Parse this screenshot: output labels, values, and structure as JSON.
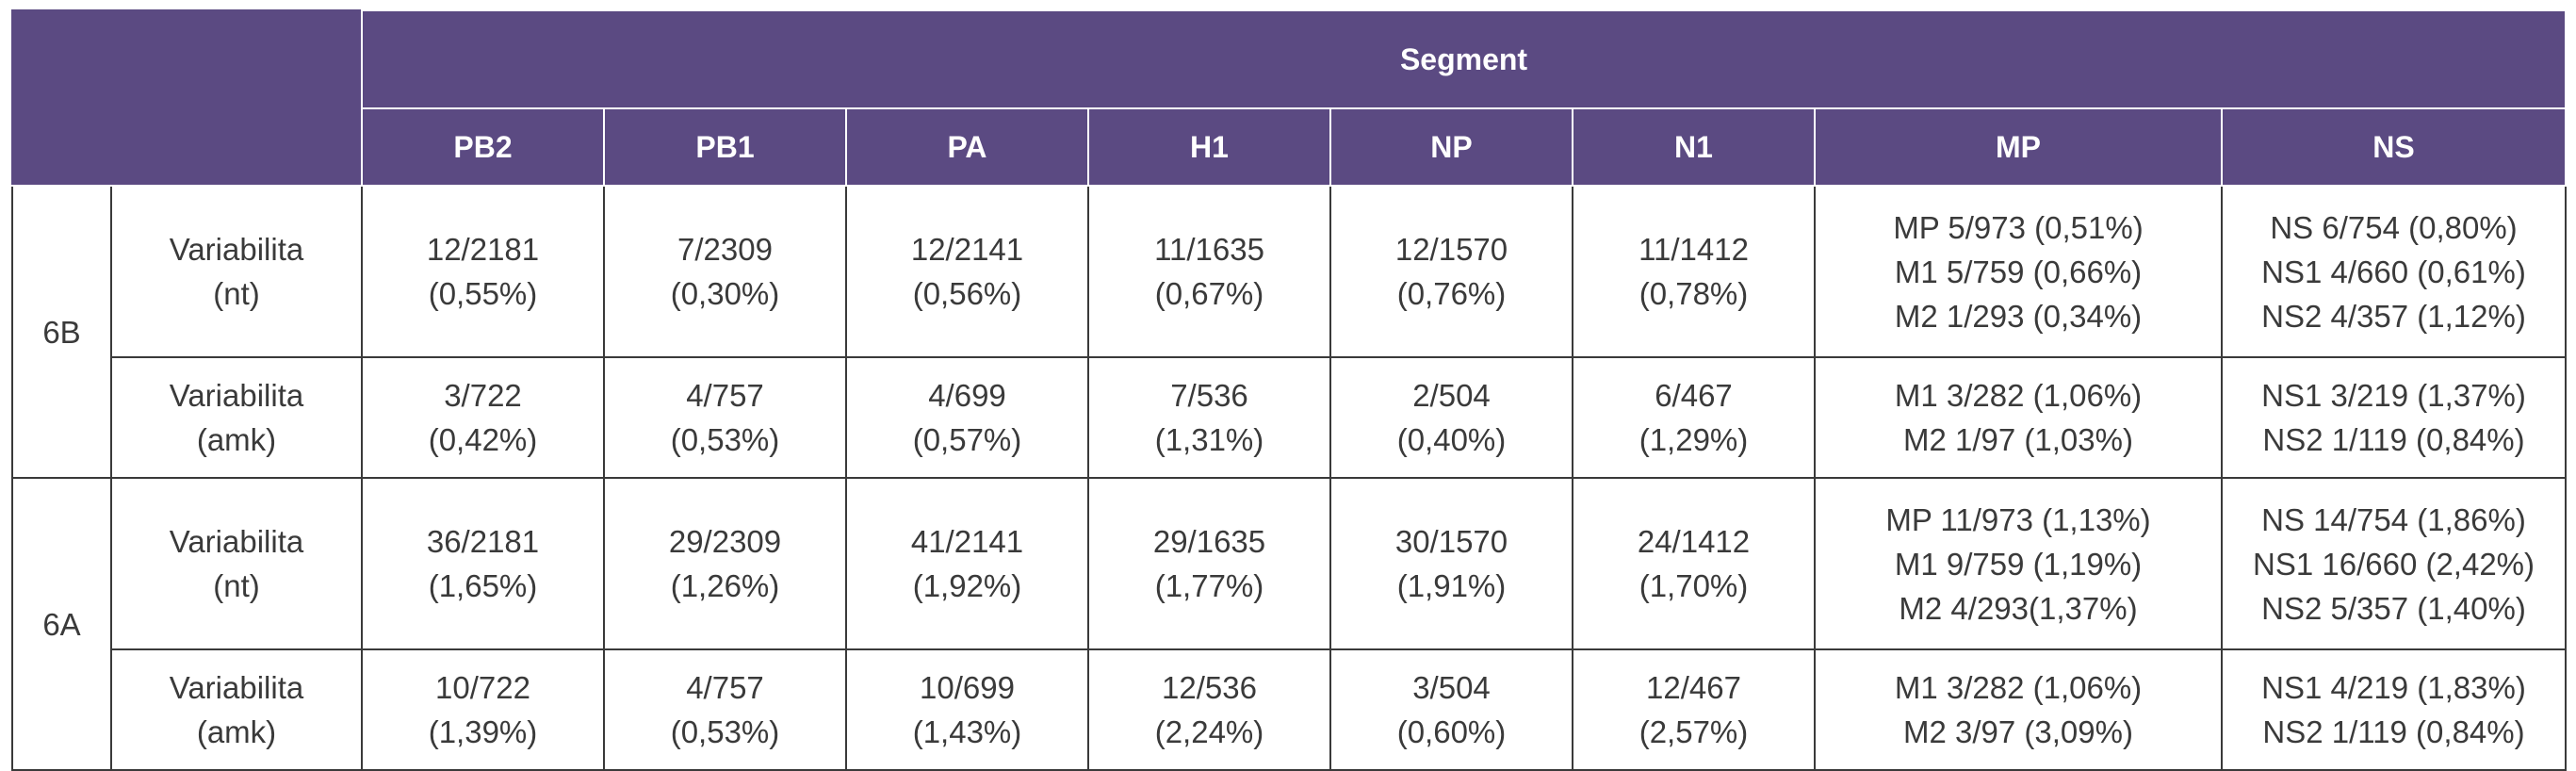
{
  "table": {
    "super_header": "Segment",
    "columns": [
      "PB2",
      "PB1",
      "PA",
      "H1",
      "NP",
      "N1",
      "MP",
      "NS"
    ],
    "groups": [
      {
        "label": "6B",
        "rows": [
          {
            "metric": [
              "Variabilita",
              "(nt)"
            ],
            "cells": [
              [
                "12/2181",
                "(0,55%)"
              ],
              [
                "7/2309",
                "(0,30%)"
              ],
              [
                "12/2141",
                "(0,56%)"
              ],
              [
                "11/1635",
                "(0,67%)"
              ],
              [
                "12/1570",
                "(0,76%)"
              ],
              [
                "11/1412",
                "(0,78%)"
              ],
              [
                "MP 5/973 (0,51%)",
                "M1 5/759 (0,66%)",
                "M2 1/293 (0,34%)"
              ],
              [
                "NS 6/754 (0,80%)",
                "NS1 4/660 (0,61%)",
                "NS2 4/357 (1,12%)"
              ]
            ]
          },
          {
            "metric": [
              "Variabilita",
              "(amk)"
            ],
            "cells": [
              [
                "3/722",
                "(0,42%)"
              ],
              [
                "4/757",
                "(0,53%)"
              ],
              [
                "4/699",
                "(0,57%)"
              ],
              [
                "7/536",
                "(1,31%)"
              ],
              [
                "2/504",
                "(0,40%)"
              ],
              [
                "6/467",
                "(1,29%)"
              ],
              [
                "M1 3/282 (1,06%)",
                "M2 1/97 (1,03%)"
              ],
              [
                "NS1 3/219 (1,37%)",
                "NS2 1/119 (0,84%)"
              ]
            ]
          }
        ]
      },
      {
        "label": "6A",
        "rows": [
          {
            "metric": [
              "Variabilita",
              "(nt)"
            ],
            "cells": [
              [
                "36/2181",
                "(1,65%)"
              ],
              [
                "29/2309",
                "(1,26%)"
              ],
              [
                "41/2141",
                "(1,92%)"
              ],
              [
                "29/1635",
                "(1,77%)"
              ],
              [
                "30/1570",
                "(1,91%)"
              ],
              [
                "24/1412",
                "(1,70%)"
              ],
              [
                "MP 11/973 (1,13%)",
                "M1 9/759 (1,19%)",
                "M2 4/293(1,37%)"
              ],
              [
                "NS 14/754 (1,86%)",
                "NS1 16/660 (2,42%)",
                "NS2 5/357 (1,40%)"
              ]
            ]
          },
          {
            "metric": [
              "Variabilita",
              "(amk)"
            ],
            "cells": [
              [
                "10/722",
                "(1,39%)"
              ],
              [
                "4/757",
                "(0,53%)"
              ],
              [
                "10/699",
                "(1,43%)"
              ],
              [
                "12/536",
                "(2,24%)"
              ],
              [
                "3/504",
                "(0,60%)"
              ],
              [
                "12/467",
                "(2,57%)"
              ],
              [
                "M1 3/282 (1,06%)",
                "M2 3/97 (3,09%)"
              ],
              [
                "NS1 4/219 (1,83%)",
                "NS2 1/119 (0,84%)"
              ]
            ]
          }
        ]
      }
    ]
  },
  "colors": {
    "header_bg": "#5b4a82",
    "header_text": "#ffffff",
    "border": "#3a3a3a",
    "body_text": "#3a3a3a"
  }
}
